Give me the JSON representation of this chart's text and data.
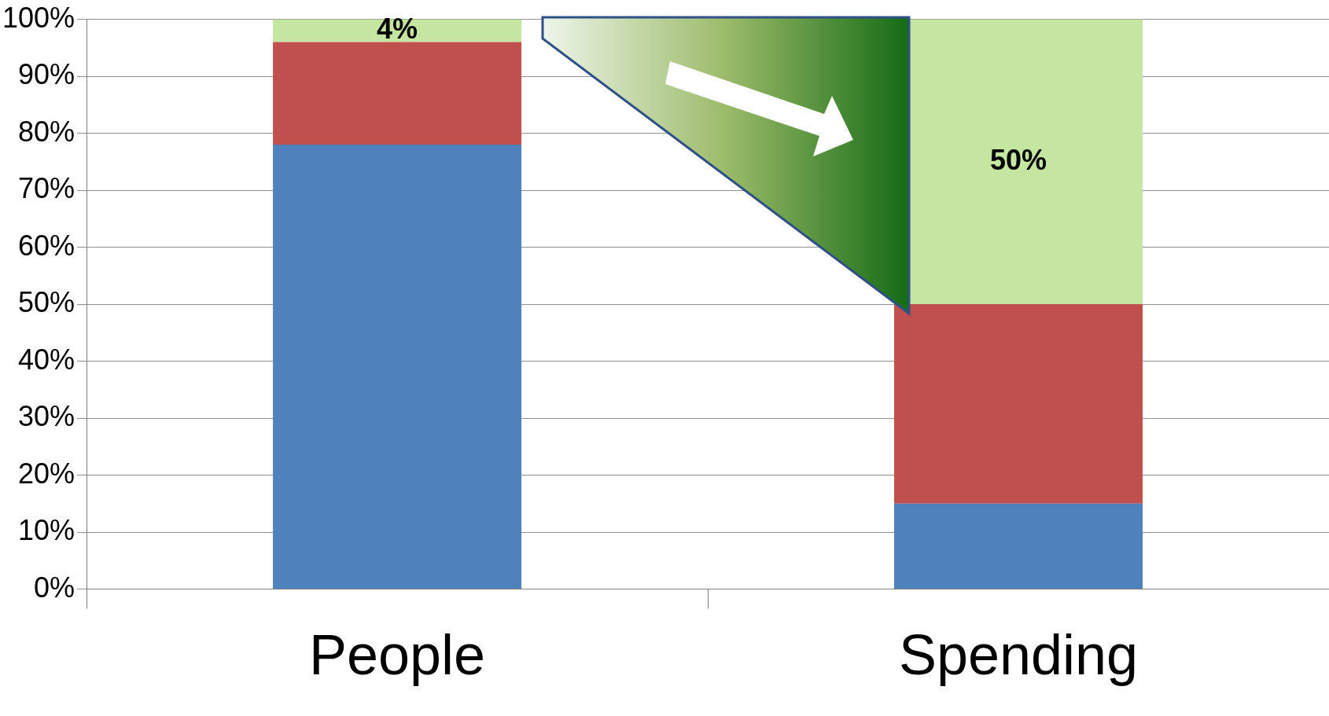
{
  "chart_data": {
    "type": "bar",
    "stacked": true,
    "categories": [
      "People",
      "Spending"
    ],
    "series": [
      {
        "color": "#4f81bd",
        "values": [
          78,
          15
        ]
      },
      {
        "color": "#c0504d",
        "values": [
          18,
          35
        ]
      },
      {
        "color": "#c4e6a0",
        "values": [
          4,
          50
        ],
        "value_labels": [
          "4%",
          "50%"
        ]
      }
    ],
    "ylim": [
      0,
      100
    ],
    "yticks": [
      {
        "value": 0,
        "label": "0%"
      },
      {
        "value": 10,
        "label": "10%"
      },
      {
        "value": 20,
        "label": "20%"
      },
      {
        "value": 30,
        "label": "30%"
      },
      {
        "value": 40,
        "label": "40%"
      },
      {
        "value": 50,
        "label": "50%"
      },
      {
        "value": 60,
        "label": "60%"
      },
      {
        "value": 70,
        "label": "70%"
      },
      {
        "value": 80,
        "label": "80%"
      },
      {
        "value": 90,
        "label": "90%"
      },
      {
        "value": 100,
        "label": "100%"
      }
    ],
    "grid": "y",
    "legend": false
  }
}
